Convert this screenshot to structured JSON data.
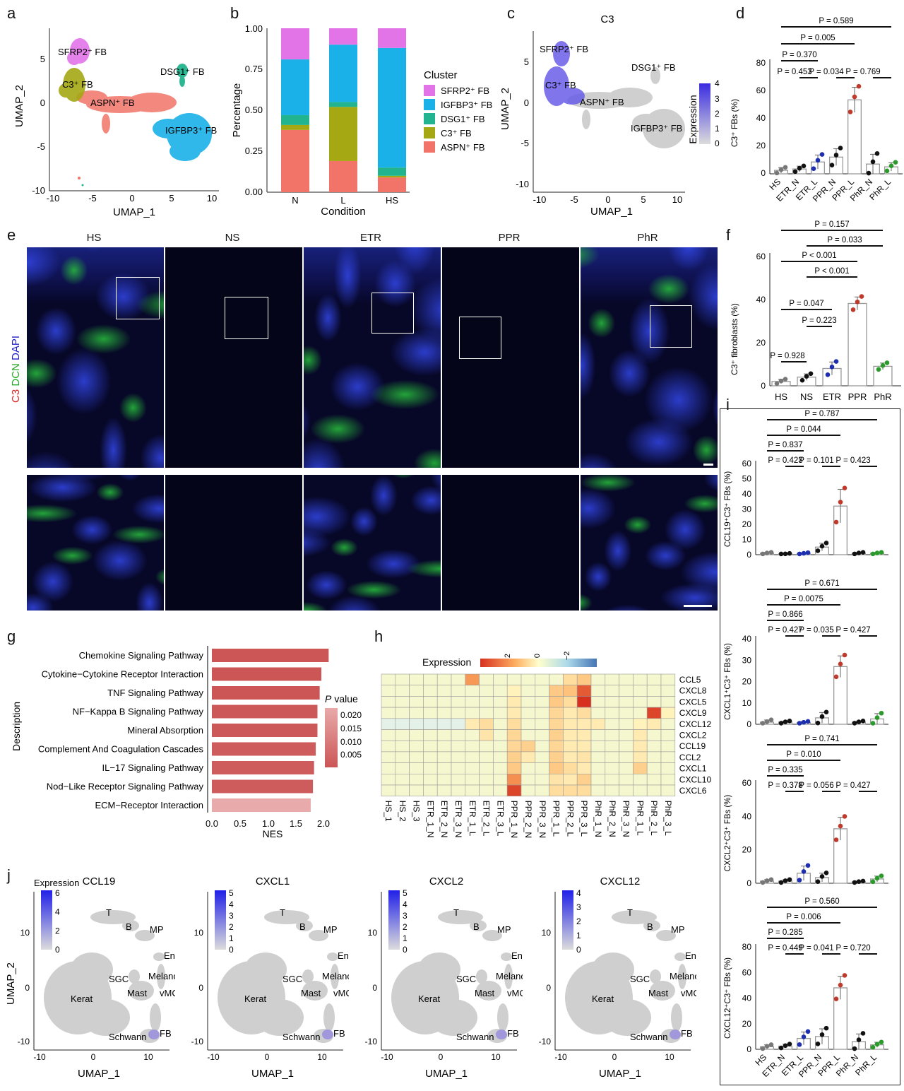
{
  "panel_labels": [
    "a",
    "b",
    "c",
    "d",
    "e",
    "f",
    "g",
    "h",
    "i",
    "j"
  ],
  "panel_a": {
    "xlabel": "UMAP_1",
    "ylabel": "UMAP_2",
    "xticks": [
      "-10",
      "-5",
      "0",
      "5",
      "10"
    ],
    "yticks": [
      "5",
      "0",
      "-5",
      "-10"
    ],
    "clusters": [
      "SFRP2⁺ FB",
      "C3⁺ FB",
      "ASPN⁺ FB",
      "DSG1⁺ FB",
      "IGFBP3⁺ FB"
    ]
  },
  "panel_b": {
    "xlabel": "Condition",
    "ylabel": "Percentage",
    "legend_title": "Cluster",
    "legend": [
      "SFRP2⁺ FB",
      "IGFBP3⁺ FB",
      "DSG1⁺ FB",
      "C3⁺ FB",
      "ASPN⁺ FB"
    ],
    "colors": {
      "SFRP2": "#e274e8",
      "IGFBP3": "#1ab1e8",
      "DSG1": "#22b48e",
      "C3": "#a5a813",
      "ASPN": "#f27468"
    }
  },
  "panel_c": {
    "title": "C3",
    "xlabel": "UMAP_1",
    "ylabel": "UMAP_2",
    "legend_title": "Expression",
    "legend_ticks": [
      "4",
      "3",
      "2",
      "1",
      "0"
    ],
    "xticks": [
      "-10",
      "-5",
      "0",
      "5",
      "10"
    ],
    "yticks": [
      "5",
      "0",
      "-5",
      "-10"
    ]
  },
  "panel_d": {
    "ylabel": "C3⁺ FBs (%)",
    "yticks": [
      "80",
      "60",
      "40",
      "20",
      "0"
    ]
  },
  "panel_e": {
    "side_label_parts": [
      "C3",
      "DCN",
      "DAPI"
    ],
    "columns": [
      "HS",
      "NS",
      "ETR",
      "PPR",
      "PhR"
    ]
  },
  "panel_f": {
    "ylabel": "C3⁺ fibroblasts (%)",
    "yticks": [
      "60",
      "40",
      "20",
      "0"
    ]
  },
  "panel_g": {
    "ylabel": "Description",
    "xlabel": "NES",
    "xticks": [
      "0.0",
      "0.5",
      "1.0",
      "1.5",
      "2.0"
    ],
    "legend_title": "P value",
    "legend_ticks": [
      "0.020",
      "0.015",
      "0.010",
      "0.005"
    ]
  },
  "panel_h": {
    "legend_title": "Expression",
    "legend_ticks": [
      "2",
      "0",
      "−2"
    ]
  },
  "panel_i": {
    "ylabels": [
      "CCL19⁺C3⁺ FBs (%)",
      "CXCL1⁺C3⁺ FBs (%)",
      "CXCL2⁺C3⁺ FBs (%)",
      "CXCL12⁺C3⁺ FBs (%)"
    ],
    "yticks": [
      [
        "60",
        "50",
        "40",
        "30",
        "20",
        "10",
        "0"
      ],
      [
        "40",
        "30",
        "20",
        "10",
        "0"
      ],
      [
        "60",
        "40",
        "20",
        "0"
      ],
      [
        "80",
        "60",
        "40",
        "20",
        "0"
      ]
    ]
  },
  "panel_j": {
    "legend_title": "Expression",
    "xlabel": "UMAP_1",
    "ylabel": "UMAP_2",
    "panels": [
      {
        "title": "CCL19",
        "ticks": [
          "6",
          "4",
          "2",
          "0"
        ]
      },
      {
        "title": "CXCL1",
        "ticks": [
          "5",
          "4",
          "3",
          "2",
          "1",
          "0"
        ]
      },
      {
        "title": "CXCL2",
        "ticks": [
          "5",
          "4",
          "3",
          "2",
          "1",
          "0"
        ]
      },
      {
        "title": "CXCL12",
        "ticks": [
          "4",
          "3",
          "2",
          "1",
          "0"
        ]
      }
    ],
    "cells": [
      "T",
      "B",
      "MP",
      "Endo",
      "SGC",
      "Melano",
      "Mast",
      "vMC",
      "Kerat",
      "Schwann",
      "FB"
    ],
    "xticks": [
      "-10",
      "0",
      "10"
    ],
    "yticks": [
      "10",
      "0",
      "-10"
    ]
  },
  "chart_data": [
    {
      "id": "b",
      "type": "bar",
      "stacked": true,
      "categories": [
        "N",
        "L",
        "HS"
      ],
      "ylim": [
        0,
        1
      ],
      "yticks": [
        "0.00",
        "0.25",
        "0.50",
        "0.75",
        "1.00"
      ],
      "series": [
        {
          "name": "ASPN⁺ FB",
          "values": [
            0.38,
            0.19,
            0.09
          ]
        },
        {
          "name": "C3⁺ FB",
          "values": [
            0.03,
            0.33,
            0.01
          ]
        },
        {
          "name": "DSG1⁺ FB",
          "values": [
            0.06,
            0.03,
            0.05
          ]
        },
        {
          "name": "IGFBP3⁺ FB",
          "values": [
            0.34,
            0.35,
            0.73
          ]
        },
        {
          "name": "SFRP2⁺ FB",
          "values": [
            0.19,
            0.1,
            0.12
          ]
        }
      ]
    },
    {
      "id": "d",
      "type": "bar",
      "categories": [
        "HS",
        "ETR_N",
        "ETR_L",
        "PPR_N",
        "PPR_L",
        "PhR_N",
        "PhR_L"
      ],
      "values": [
        2.5,
        3.5,
        8.5,
        12,
        53,
        7,
        5
      ],
      "errors": [
        2,
        2,
        5,
        6,
        9,
        7,
        3
      ],
      "ylim": [
        0,
        80
      ],
      "comparisons": [
        {
          "label": "P = 0.589"
        },
        {
          "label": "P = 0.005"
        },
        {
          "label": "P = 0.370"
        },
        {
          "label": "P = 0.453"
        },
        {
          "label": "P = 0.034"
        },
        {
          "label": "P = 0.769"
        }
      ]
    },
    {
      "id": "f",
      "type": "bar",
      "categories": [
        "HS",
        "NS",
        "ETR",
        "PPR",
        "PhR"
      ],
      "values": [
        2,
        4,
        8,
        38,
        9
      ],
      "errors": [
        1,
        1.5,
        3,
        3,
        1.5
      ],
      "ylim": [
        0,
        60
      ],
      "comparisons": [
        {
          "label": "P = 0.157"
        },
        {
          "label": "P = 0.033"
        },
        {
          "label": "P < 0.001"
        },
        {
          "label": "P < 0.001"
        },
        {
          "label": "P = 0.047"
        },
        {
          "label": "P = 0.223"
        },
        {
          "label": "P = 0.928"
        }
      ]
    },
    {
      "id": "g",
      "type": "bar",
      "orientation": "horizontal",
      "categories": [
        "Chemokine Signaling Pathway",
        "Cytokine−Cytokine Receptor Interaction",
        "TNF Signaling Pathway",
        "NF−Kappa B Signaling Pathway",
        "Mineral Absorption",
        "Complement And Coagulation Cascades",
        "IL−17 Signaling Pathway",
        "Nod−Like Receptor Signaling Pathway",
        "ECM−Receptor Interaction"
      ],
      "values": [
        2.08,
        1.95,
        1.92,
        1.88,
        1.88,
        1.85,
        1.82,
        1.8,
        1.76
      ],
      "xlim": [
        0,
        2.2
      ]
    },
    {
      "id": "h",
      "type": "heatmap",
      "rows": [
        "CCL5",
        "CXCL8",
        "CXCL5",
        "CXCL9",
        "CXCL12",
        "CXCL2",
        "CCL19",
        "CCL2",
        "CXCL1",
        "CXCL10",
        "CXCL6"
      ],
      "columns": [
        "HS_1",
        "HS_2",
        "HS_3",
        "ETR_1_N",
        "ETR_2_N",
        "ETR_3_N",
        "ETR_1_L",
        "ETR_2_L",
        "ETR_3_L",
        "PPR_1_N",
        "PPR_2_N",
        "PPR_3_N",
        "PPR_1_L",
        "PPR_2_L",
        "PPR_3_L",
        "PhR_1_N",
        "PhR_2_N",
        "PhR_3_N",
        "PhR_1_L",
        "PhR_2_L",
        "PhR_3_L"
      ],
      "values": [
        [
          0,
          0,
          0,
          0,
          0,
          0,
          1.4,
          0,
          0,
          0,
          0,
          0,
          0,
          0.5,
          0.8,
          0,
          0,
          0,
          0,
          0,
          0
        ],
        [
          0,
          0,
          0,
          0,
          0,
          0,
          0,
          0,
          0,
          0.2,
          0,
          0,
          0.8,
          0.9,
          2,
          0,
          0,
          0,
          0,
          0,
          0
        ],
        [
          0,
          0,
          0,
          0,
          0,
          0,
          0,
          0,
          0,
          0.3,
          0,
          0,
          0.8,
          0.5,
          2.4,
          0,
          0,
          0,
          0,
          0,
          0
        ],
        [
          0,
          0,
          0,
          0,
          0,
          0,
          0,
          0,
          0,
          0.3,
          0,
          0,
          0.6,
          0.3,
          0.5,
          0,
          0,
          0,
          0,
          2.2,
          0.2
        ],
        [
          -0.2,
          -0.2,
          -0.2,
          -0.2,
          -0.2,
          -0.2,
          0.3,
          0.5,
          0,
          0.5,
          0,
          0,
          0.6,
          0.3,
          0.3,
          0.3,
          0,
          0,
          0.2,
          0.3,
          0
        ],
        [
          0,
          0,
          0,
          0,
          0,
          0,
          0,
          0.4,
          0,
          0.6,
          0,
          0,
          0.7,
          0.3,
          0.3,
          0,
          0,
          0,
          0.3,
          0,
          0
        ],
        [
          0,
          0,
          0,
          0,
          0,
          0,
          0,
          0,
          0,
          0.6,
          0.7,
          0,
          0.6,
          0.3,
          0.3,
          0,
          0,
          0,
          0.3,
          0,
          0
        ],
        [
          0,
          0,
          0,
          0,
          0,
          0,
          0,
          0,
          0,
          0.7,
          0.3,
          0,
          0.7,
          0.3,
          0.4,
          0,
          0,
          0,
          0.3,
          0,
          0
        ],
        [
          0,
          0,
          0,
          0,
          0,
          0,
          0,
          0,
          0,
          0.8,
          0,
          0,
          0.8,
          0.5,
          0.3,
          0,
          0,
          0,
          0.7,
          0,
          0
        ],
        [
          0,
          0,
          0,
          0,
          0,
          0,
          0,
          0,
          0,
          1.5,
          0,
          0,
          0.4,
          0.3,
          0.7,
          0,
          0,
          0,
          0,
          0,
          0
        ],
        [
          0,
          0,
          0,
          0,
          0,
          0,
          0,
          0,
          0,
          2.2,
          0,
          0,
          0.5,
          0.5,
          0.5,
          0,
          0,
          0,
          0,
          0,
          0
        ]
      ]
    },
    {
      "id": "i",
      "type": "bar",
      "categories": [
        "HS",
        "ETR_N",
        "ETR_L",
        "PPR_N",
        "PPR_L",
        "PhR_N",
        "PhR_L"
      ],
      "panels": [
        {
          "values": [
            1,
            0.5,
            0.8,
            5,
            32,
            1,
            1
          ],
          "errors": [
            0.5,
            0.3,
            0.5,
            2.5,
            11,
            0.5,
            0.5
          ],
          "ylim": [
            0,
            60
          ],
          "comparisons": [
            "P = 0.787",
            "P = 0.044",
            "P = 0.837",
            "P = 0.423",
            "P = 0.101",
            "P = 0.423"
          ]
        },
        {
          "values": [
            1,
            1,
            0.8,
            3,
            27,
            1,
            2.5
          ],
          "errors": [
            1,
            0.5,
            0.5,
            2.5,
            5,
            0.5,
            2.5
          ],
          "ylim": [
            0,
            40
          ],
          "comparisons": [
            "P = 0.671",
            "P = 0.0075",
            "P = 0.866",
            "P = 0.427",
            "P = 0.035",
            "P = 0.427"
          ]
        },
        {
          "values": [
            1.5,
            1.5,
            7,
            4,
            38,
            1,
            3
          ],
          "errors": [
            1,
            1,
            5,
            3,
            8,
            0.5,
            2
          ],
          "ylim": [
            0,
            70
          ],
          "comparisons": [
            "P = 0.741",
            "P = 0.010",
            "P = 0.335",
            "P = 0.378",
            "P = 0.056",
            "P = 0.427"
          ]
        },
        {
          "values": [
            2,
            2.5,
            8.5,
            10,
            48,
            6,
            3.5
          ],
          "errors": [
            1.5,
            1.5,
            5,
            6,
            9,
            6,
            2
          ],
          "ylim": [
            0,
            80
          ],
          "comparisons": [
            "P = 0.560",
            "P = 0.006",
            "P = 0.285",
            "P = 0.449",
            "P = 0.041",
            "P = 0.720"
          ]
        }
      ]
    }
  ]
}
